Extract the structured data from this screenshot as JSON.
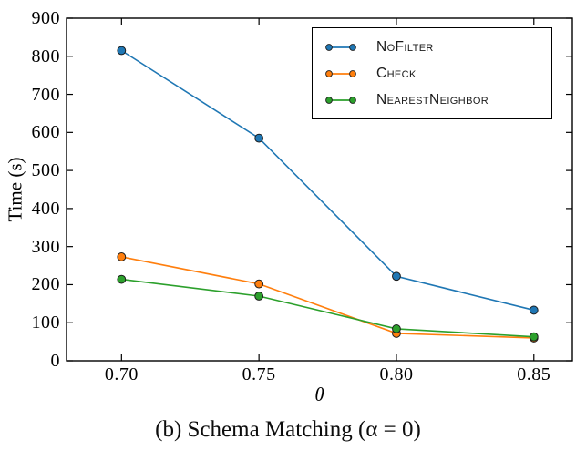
{
  "figure": {
    "caption": "(b) Schema Matching (α = 0)"
  },
  "chart_data": {
    "type": "line",
    "title": "",
    "xlabel": "θ",
    "ylabel": "Time (s)",
    "x": [
      0.7,
      0.75,
      0.8,
      0.85
    ],
    "x_tick_labels": [
      "0.70",
      "0.75",
      "0.80",
      "0.85"
    ],
    "y_ticks": [
      0,
      100,
      200,
      300,
      400,
      500,
      600,
      700,
      800,
      900
    ],
    "y_tick_labels": [
      "0",
      "100",
      "200",
      "300",
      "400",
      "500",
      "600",
      "700",
      "800",
      "900"
    ],
    "xlim": [
      0.68,
      0.864
    ],
    "ylim": [
      0,
      900
    ],
    "grid": false,
    "legend_position": "top-right",
    "marker": "circle",
    "marker_edge_color": "#1c1c1c",
    "series": [
      {
        "name": "NoFilter",
        "color": "#1f77b4",
        "values": [
          815,
          585,
          222,
          133
        ]
      },
      {
        "name": "Check",
        "color": "#ff7f0e",
        "values": [
          273,
          202,
          72,
          60
        ]
      },
      {
        "name": "NearestNeighbor",
        "color": "#2ca02c",
        "values": [
          214,
          170,
          84,
          63
        ]
      }
    ]
  }
}
